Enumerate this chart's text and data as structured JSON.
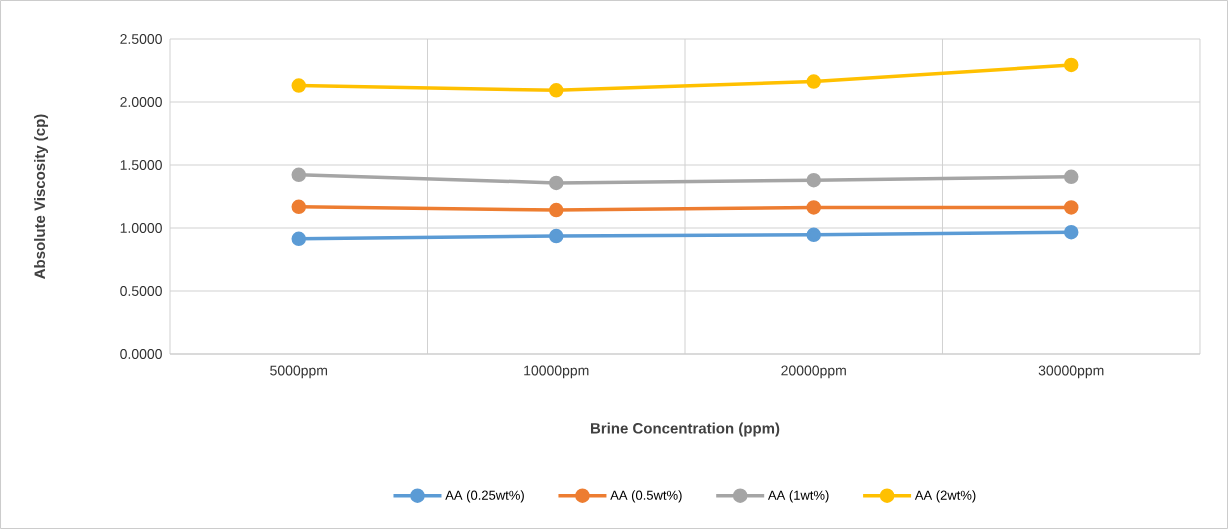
{
  "chart_data": {
    "type": "line",
    "xlabel": "Brine Concentration (ppm)",
    "ylabel": "Absolute Viscosity (cp)",
    "categories": [
      "5000ppm",
      "10000ppm",
      "20000ppm",
      "30000ppm"
    ],
    "series": [
      {
        "name": "AA (0.25wt%)",
        "color": "#5b9bd5",
        "values": [
          0.914,
          0.936,
          0.946,
          0.967
        ]
      },
      {
        "name": "AA (0.5wt%)",
        "color": "#ed7d31",
        "values": [
          1.168,
          1.142,
          1.163,
          1.163
        ]
      },
      {
        "name": "AA (1wt%)",
        "color": "#a5a5a5",
        "values": [
          1.422,
          1.358,
          1.379,
          1.406
        ]
      },
      {
        "name": "AA (2wt%)",
        "color": "#ffc000",
        "values": [
          2.13,
          2.093,
          2.162,
          2.294
        ]
      }
    ],
    "ylim": [
      0,
      2.5
    ],
    "yticks": [
      {
        "value": 0,
        "label": "0.0000"
      },
      {
        "value": 0.5,
        "label": "0.5000"
      },
      {
        "value": 1,
        "label": "1.0000"
      },
      {
        "value": 1.5,
        "label": "1.5000"
      },
      {
        "value": 2,
        "label": "2.0000"
      },
      {
        "value": 2.5,
        "label": "2.5000"
      }
    ],
    "grid": true,
    "legend": "bottom",
    "marker": "circle",
    "line_style": "solid"
  }
}
